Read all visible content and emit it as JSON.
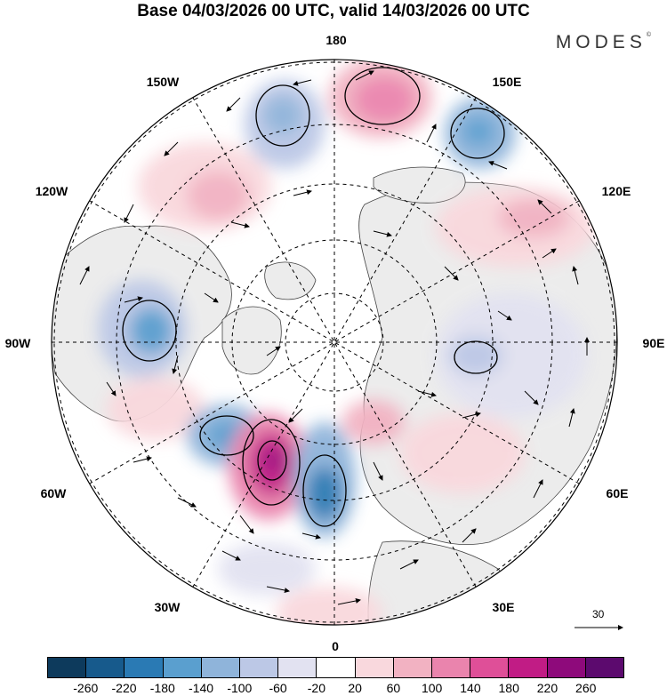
{
  "title": "Base 04/03/2026 00 UTC, valid 14/03/2026 00 UTC",
  "brand": "MODES",
  "brand_mark": "©",
  "longitude_labels": {
    "lon_180": "180",
    "lon_150e": "150E",
    "lon_120e": "120E",
    "lon_90e": "90E",
    "lon_60e": "60E",
    "lon_30e": "30E",
    "lon_0": "0",
    "lon_30w": "30W",
    "lon_60w": "60W",
    "lon_90w": "90W",
    "lon_120w": "120W",
    "lon_150w": "150W"
  },
  "vector_scale": {
    "label": "30",
    "icon": "arrow-icon"
  },
  "colorbar": {
    "colors": [
      "#0d3a5c",
      "#175a8c",
      "#2a7ab4",
      "#5a9fcf",
      "#8fb4da",
      "#bcc8e6",
      "#e2e2f1",
      "#ffffff",
      "#f9d8dd",
      "#f2b2c2",
      "#ea84ad",
      "#df4f98",
      "#c11c85",
      "#8e0a7b",
      "#5c0a6e"
    ],
    "ticks": [
      "-260",
      "-220",
      "-180",
      "-140",
      "-100",
      "-60",
      "-20",
      "20",
      "60",
      "100",
      "140",
      "180",
      "220",
      "260"
    ]
  },
  "colors": {
    "land": "#eeeeee",
    "ocean": "#ffffff",
    "coast": "#333333"
  }
}
